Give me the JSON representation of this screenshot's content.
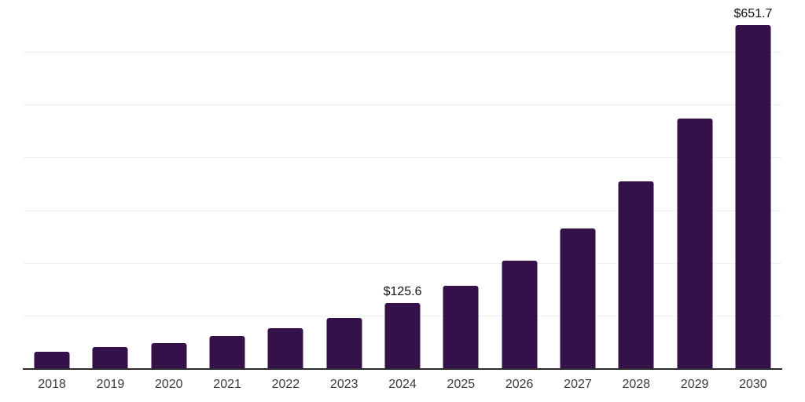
{
  "chart_data": {
    "type": "bar",
    "title": "",
    "xlabel": "",
    "ylabel": "",
    "categories": [
      "2018",
      "2019",
      "2020",
      "2021",
      "2022",
      "2023",
      "2024",
      "2025",
      "2026",
      "2027",
      "2028",
      "2029",
      "2030"
    ],
    "values": [
      33,
      41,
      49.5,
      62,
      77,
      97,
      125.6,
      158,
      205,
      267,
      356,
      475,
      651.7
    ],
    "labels": {
      "2024": "$125.6",
      "2030": "$651.7"
    },
    "ylim": [
      0,
      700
    ],
    "gridline_step": 100,
    "grid": true,
    "legend": false,
    "y_tick_labels_visible": false,
    "bar_color": "#341149",
    "axis_color": "#2b2b2b",
    "gridline_color": "#efeff1",
    "value_label_color": "#111111",
    "tick_label_color": "#3b3b3b",
    "background_color": "#ffffff"
  }
}
